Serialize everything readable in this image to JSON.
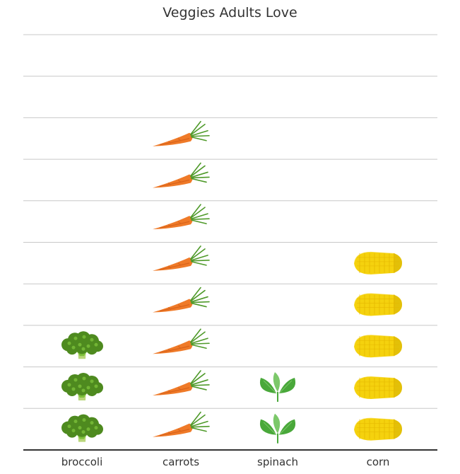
{
  "chart_data": {
    "type": "pictograph",
    "title": "Veggies Adults Love",
    "categories": [
      "broccoli",
      "carrots",
      "spinach",
      "corn"
    ],
    "values": [
      3,
      8,
      2,
      5
    ],
    "icons": [
      "broccoli-icon",
      "carrot-icon",
      "spinach-icon",
      "corn-icon"
    ],
    "ylim": [
      0,
      10
    ],
    "grid": true,
    "legend": "none",
    "colors": {
      "gridline": "#c8c8c8",
      "baseline": "#333333",
      "text": "#333333",
      "broccoli_dark": "#4e8a1f",
      "broccoli_light": "#7cbf3a",
      "broccoli_stem": "#b9d67a",
      "carrot": "#ef7a28",
      "carrot_shade": "#d8621a",
      "carrot_greens": "#4f9a2a",
      "spinach": "#49a83a",
      "spinach_light": "#7cc86a",
      "corn": "#f5d20e",
      "corn_kernel": "#e6b800",
      "corn_tip": "#c9a600"
    }
  }
}
